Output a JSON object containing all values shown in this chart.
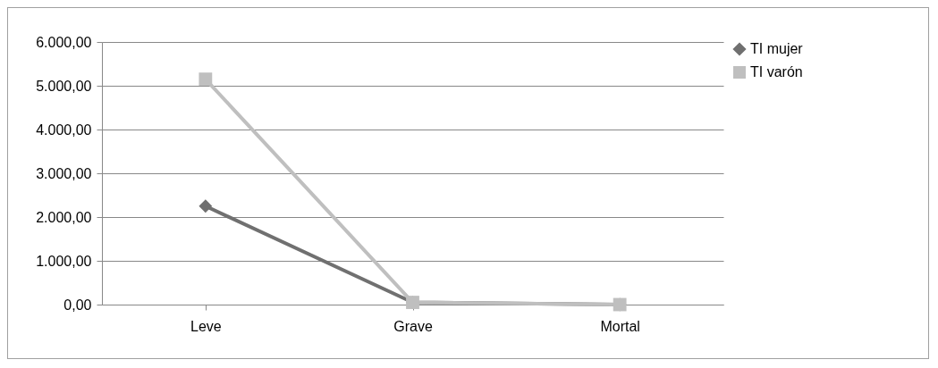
{
  "chart_data": {
    "type": "line",
    "categories": [
      "Leve",
      "Grave",
      "Mortal"
    ],
    "series": [
      {
        "name": "TI mujer",
        "color": "#707070",
        "marker": "diamond",
        "values": [
          2250,
          50,
          0
        ]
      },
      {
        "name": "TI varón",
        "color": "#bfbfbf",
        "marker": "square",
        "values": [
          5150,
          50,
          0
        ]
      }
    ],
    "ylim": [
      0,
      6000
    ],
    "yticks": [
      {
        "value": 0,
        "label": "0,00"
      },
      {
        "value": 1000,
        "label": "1.000,00"
      },
      {
        "value": 2000,
        "label": "2.000,00"
      },
      {
        "value": 3000,
        "label": "3.000,00"
      },
      {
        "value": 4000,
        "label": "4.000,00"
      },
      {
        "value": 5000,
        "label": "5.000,00"
      },
      {
        "value": 6000,
        "label": "6.000,00"
      }
    ],
    "grid": "y",
    "legend": "right",
    "line_style": "solid"
  }
}
